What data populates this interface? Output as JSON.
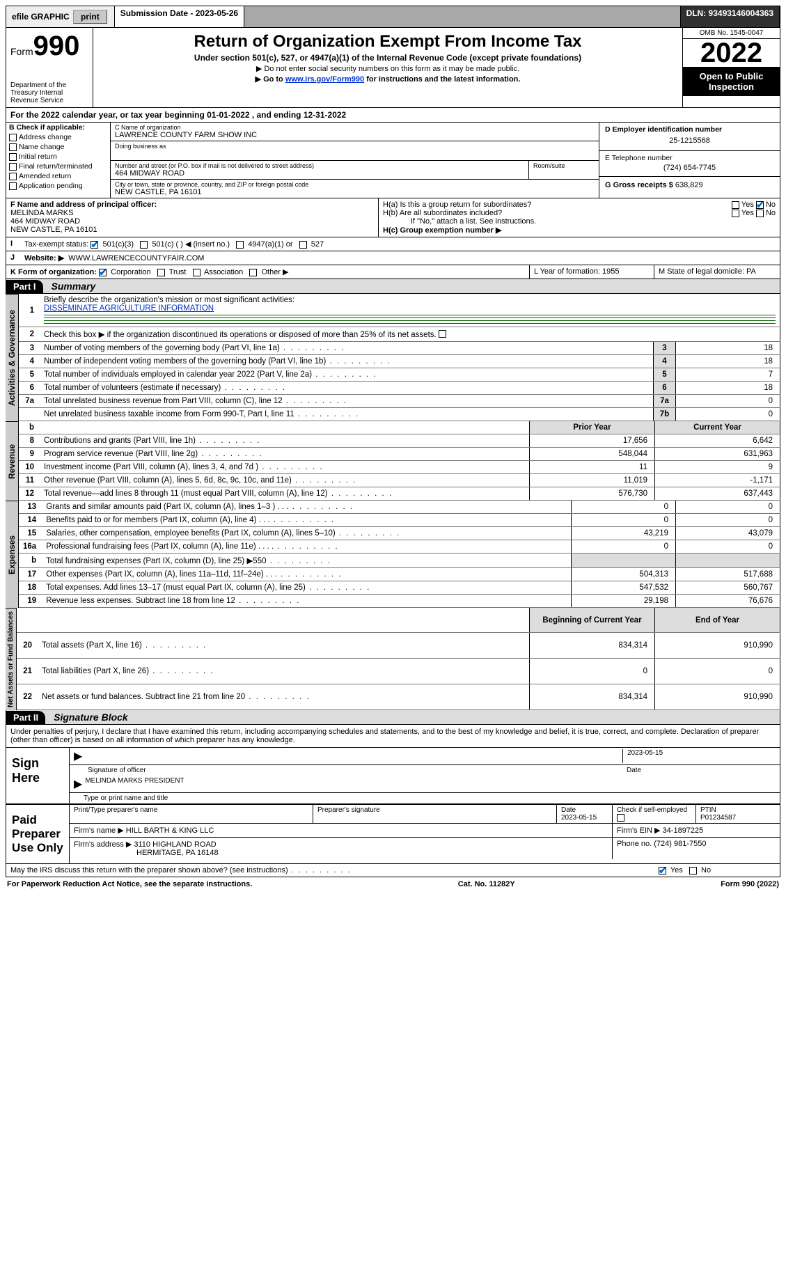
{
  "topbar": {
    "efile": "efile GRAPHIC",
    "print": "print",
    "sub_label": "Submission Date - 2023-05-26",
    "dln": "DLN: 93493146004363"
  },
  "header": {
    "form_prefix": "Form",
    "form_number": "990",
    "title": "Return of Organization Exempt From Income Tax",
    "subtitle": "Under section 501(c), 527, or 4947(a)(1) of the Internal Revenue Code (except private foundations)",
    "note1": "▶ Do not enter social security numbers on this form as it may be made public.",
    "note2_a": "▶ Go to ",
    "note2_link": "www.irs.gov/Form990",
    "note2_b": " for instructions and the latest information.",
    "dept": "Department of the Treasury Internal Revenue Service",
    "omb": "OMB No. 1545-0047",
    "year": "2022",
    "open": "Open to Public Inspection"
  },
  "sectionA": {
    "line": "For the 2022 calendar year, or tax year beginning 01-01-2022    , and ending 12-31-2022"
  },
  "B": {
    "title": "B Check if applicable:",
    "opts": [
      "Address change",
      "Name change",
      "Initial return",
      "Final return/terminated",
      "Amended return",
      "Application pending"
    ]
  },
  "C": {
    "label_name": "C Name of organization",
    "name": "LAWRENCE COUNTY FARM SHOW INC",
    "dba_label": "Doing business as",
    "addr_label": "Number and street (or P.O. box if mail is not delivered to street address)",
    "room_label": "Room/suite",
    "addr": "464 MIDWAY ROAD",
    "city_label": "City or town, state or province, country, and ZIP or foreign postal code",
    "city": "NEW CASTLE, PA  16101"
  },
  "D": {
    "label": "D Employer identification number",
    "value": "25-1215568"
  },
  "E": {
    "label": "E Telephone number",
    "value": "(724) 654-7745"
  },
  "G": {
    "label": "G Gross receipts $",
    "value": "638,829"
  },
  "F": {
    "label": "F  Name and address of principal officer:",
    "name": "MELINDA MARKS",
    "addr1": "464 MIDWAY ROAD",
    "addr2": "NEW CASTLE, PA  16101"
  },
  "H": {
    "a": "H(a)  Is this a group return for subordinates?",
    "b": "H(b)  Are all subordinates included?",
    "note": "If \"No,\" attach a list. See instructions.",
    "c": "H(c)  Group exemption number ▶",
    "yes": "Yes",
    "no": "No"
  },
  "I": {
    "label": "Tax-exempt status:",
    "o1": "501(c)(3)",
    "o2": "501(c) (  ) ◀ (insert no.)",
    "o3": "4947(a)(1) or",
    "o4": "527"
  },
  "J": {
    "label": "Website: ▶",
    "value": "WWW.LAWRENCECOUNTYFAIR.COM"
  },
  "K": {
    "label": "K Form of organization:",
    "o1": "Corporation",
    "o2": "Trust",
    "o3": "Association",
    "o4": "Other ▶"
  },
  "L": {
    "label": "L Year of formation: 1955"
  },
  "M": {
    "label": "M State of legal domicile: PA"
  },
  "part1": {
    "hdr": "Part I",
    "title": "Summary"
  },
  "p1": {
    "l1": "Briefly describe the organization's mission or most significant activities:",
    "l1v": "DISSEMINATE AGRICULTURE INFORMATION",
    "l2": "Check this box ▶       if the organization discontinued its operations or disposed of more than 25% of its net assets.",
    "rows_gov": [
      {
        "n": "3",
        "t": "Number of voting members of the governing body (Part VI, line 1a)",
        "box": "3",
        "v": "18"
      },
      {
        "n": "4",
        "t": "Number of independent voting members of the governing body (Part VI, line 1b)",
        "box": "4",
        "v": "18"
      },
      {
        "n": "5",
        "t": "Total number of individuals employed in calendar year 2022 (Part V, line 2a)",
        "box": "5",
        "v": "7"
      },
      {
        "n": "6",
        "t": "Total number of volunteers (estimate if necessary)",
        "box": "6",
        "v": "18"
      },
      {
        "n": "7a",
        "t": "Total unrelated business revenue from Part VIII, column (C), line 12",
        "box": "7a",
        "v": "0"
      },
      {
        "n": "",
        "t": "Net unrelated business taxable income from Form 990-T, Part I, line 11",
        "box": "7b",
        "v": "0"
      }
    ],
    "col_b": "b",
    "hdr_prior": "Prior Year",
    "hdr_curr": "Current Year",
    "rows_rev": [
      {
        "n": "8",
        "t": "Contributions and grants (Part VIII, line 1h)",
        "p": "17,656",
        "c": "6,642"
      },
      {
        "n": "9",
        "t": "Program service revenue (Part VIII, line 2g)",
        "p": "548,044",
        "c": "631,963"
      },
      {
        "n": "10",
        "t": "Investment income (Part VIII, column (A), lines 3, 4, and 7d )",
        "p": "11",
        "c": "9"
      },
      {
        "n": "11",
        "t": "Other revenue (Part VIII, column (A), lines 5, 6d, 8c, 9c, 10c, and 11e)",
        "p": "11,019",
        "c": "-1,171"
      },
      {
        "n": "12",
        "t": "Total revenue—add lines 8 through 11 (must equal Part VIII, column (A), line 12)",
        "p": "576,730",
        "c": "637,443"
      }
    ],
    "rows_exp": [
      {
        "n": "13",
        "t": "Grants and similar amounts paid (Part IX, column (A), lines 1–3 )   .   .   .",
        "p": "0",
        "c": "0"
      },
      {
        "n": "14",
        "t": "Benefits paid to or for members (Part IX, column (A), line 4)  .   .   .",
        "p": "0",
        "c": "0"
      },
      {
        "n": "15",
        "t": "Salaries, other compensation, employee benefits (Part IX, column (A), lines 5–10)",
        "p": "43,219",
        "c": "43,079"
      },
      {
        "n": "16a",
        "t": "Professional fundraising fees (Part IX, column (A), line 11e)   .   .   .   .",
        "p": "0",
        "c": "0"
      },
      {
        "n": "b",
        "t": "Total fundraising expenses (Part IX, column (D), line 25) ▶550",
        "p": "",
        "c": ""
      },
      {
        "n": "17",
        "t": "Other expenses (Part IX, column (A), lines 11a–11d, 11f–24e)   .   .   .",
        "p": "504,313",
        "c": "517,688"
      },
      {
        "n": "18",
        "t": "Total expenses. Add lines 13–17 (must equal Part IX, column (A), line 25)",
        "p": "547,532",
        "c": "560,767"
      },
      {
        "n": "19",
        "t": "Revenue less expenses. Subtract line 18 from line 12",
        "p": "29,198",
        "c": "76,676"
      }
    ],
    "hdr_beg": "Beginning of Current Year",
    "hdr_end": "End of Year",
    "rows_net": [
      {
        "n": "20",
        "t": "Total assets (Part X, line 16)",
        "p": "834,314",
        "c": "910,990"
      },
      {
        "n": "21",
        "t": "Total liabilities (Part X, line 26)",
        "p": "0",
        "c": "0"
      },
      {
        "n": "22",
        "t": "Net assets or fund balances. Subtract line 21 from line 20",
        "p": "834,314",
        "c": "910,990"
      }
    ]
  },
  "tabs": {
    "gov": "Activities & Governance",
    "rev": "Revenue",
    "exp": "Expenses",
    "net": "Net Assets or Fund Balances"
  },
  "part2": {
    "hdr": "Part II",
    "title": "Signature Block"
  },
  "p2": {
    "decl": "Under penalties of perjury, I declare that I have examined this return, including accompanying schedules and statements, and to the best of my knowledge and belief, it is true, correct, and complete. Declaration of preparer (other than officer) is based on all information of which preparer has any knowledge.",
    "sign_here": "Sign Here",
    "sig_officer": "Signature of officer",
    "sig_date": "2023-05-15",
    "date_label": "Date",
    "officer": "MELINDA MARKS  PRESIDENT",
    "type_name": "Type or print name and title",
    "paid": "Paid Preparer Use Only",
    "col_prep": "Print/Type preparer's name",
    "col_sig": "Preparer's signature",
    "col_date": "Date",
    "date2": "2023-05-15",
    "check": "Check        if self-employed",
    "ptin_l": "PTIN",
    "ptin": "P01234587",
    "firm_name_l": "Firm's name    ▶",
    "firm_name": "HILL BARTH & KING LLC",
    "firm_ein_l": "Firm's EIN ▶",
    "firm_ein": "34-1897225",
    "firm_addr_l": "Firm's address ▶",
    "firm_addr1": "3110 HIGHLAND ROAD",
    "firm_addr2": "HERMITAGE, PA  16148",
    "phone_l": "Phone no.",
    "phone": "(724) 981-7550",
    "may": "May the IRS discuss this return with the preparer shown above? (see instructions)",
    "yes": "Yes",
    "no": "No"
  },
  "footer": {
    "left": "For Paperwork Reduction Act Notice, see the separate instructions.",
    "mid": "Cat. No. 11282Y",
    "right": "Form 990 (2022)"
  }
}
